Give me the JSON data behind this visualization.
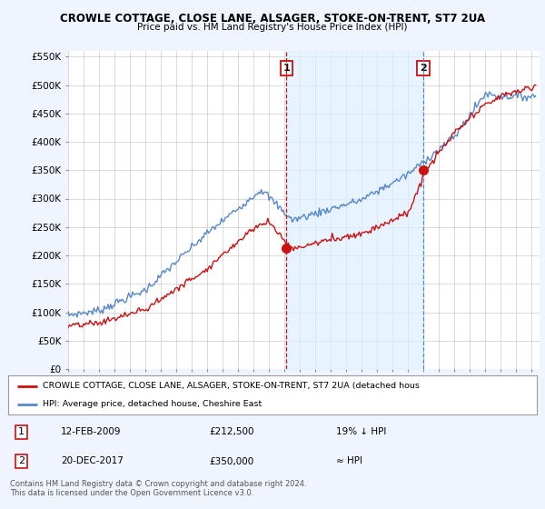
{
  "title": "CROWLE COTTAGE, CLOSE LANE, ALSAGER, STOKE-ON-TRENT, ST7 2UA",
  "subtitle": "Price paid vs. HM Land Registry's House Price Index (HPI)",
  "ylim": [
    0,
    560000
  ],
  "yticks": [
    0,
    50000,
    100000,
    150000,
    200000,
    250000,
    300000,
    350000,
    400000,
    450000,
    500000,
    550000
  ],
  "ytick_labels": [
    "£0",
    "£50K",
    "£100K",
    "£150K",
    "£200K",
    "£250K",
    "£300K",
    "£350K",
    "£400K",
    "£450K",
    "£500K",
    "£550K"
  ],
  "hpi_color": "#5588cc",
  "price_color": "#cc1111",
  "sale1_date": 2009.12,
  "sale1_price": 212500,
  "sale1_hpi": 262000,
  "sale2_date": 2017.97,
  "sale2_price": 350000,
  "sale2_hpi": 352000,
  "legend_label_red": "CROWLE COTTAGE, CLOSE LANE, ALSAGER, STOKE-ON-TRENT, ST7 2UA (detached hous",
  "legend_label_blue": "HPI: Average price, detached house, Cheshire East",
  "note1_label": "1",
  "note1_date": "12-FEB-2009",
  "note1_price": "£212,500",
  "note1_rel": "19% ↓ HPI",
  "note2_label": "2",
  "note2_date": "20-DEC-2017",
  "note2_price": "£350,000",
  "note2_rel": "≈ HPI",
  "footer": "Contains HM Land Registry data © Crown copyright and database right 2024.\nThis data is licensed under the Open Government Licence v3.0.",
  "bg_color": "#f0f4ff",
  "plot_bg": "#ffffff",
  "grid_color": "#cccccc",
  "shade_color": "#ddeeff"
}
